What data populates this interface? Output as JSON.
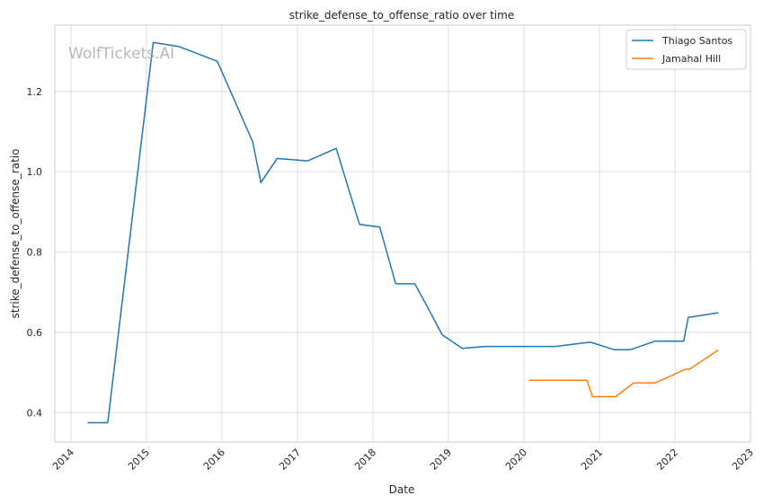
{
  "watermark": "WolfTickets.AI",
  "chart_data": {
    "type": "line",
    "title": "strike_defense_to_offense_ratio over time",
    "xlabel": "Date",
    "ylabel": "strike_defense_to_offense_ratio",
    "xlim": [
      "2013-10-15",
      "2023-01-01"
    ],
    "ylim": [
      0.327,
      1.365
    ],
    "x_ticks": [
      "2014",
      "2015",
      "2016",
      "2017",
      "2018",
      "2019",
      "2020",
      "2021",
      "2022",
      "2023"
    ],
    "y_ticks": [
      "0.4",
      "0.6",
      "0.8",
      "1.0",
      "1.2"
    ],
    "y_tick_values": [
      0.4,
      0.6,
      0.8,
      1.0,
      1.2
    ],
    "grid": true,
    "legend_position": "top-right",
    "series": [
      {
        "name": "Thiago Santos",
        "color": "#1f77b4",
        "points": [
          [
            "2014-03-23",
            0.375
          ],
          [
            "2014-06-28",
            0.375
          ],
          [
            "2015-02-03",
            1.322
          ],
          [
            "2015-06-06",
            1.312
          ],
          [
            "2015-12-10",
            1.275
          ],
          [
            "2016-05-29",
            1.075
          ],
          [
            "2016-07-08",
            0.973
          ],
          [
            "2016-09-24",
            1.033
          ],
          [
            "2017-02-19",
            1.027
          ],
          [
            "2017-07-07",
            1.058
          ],
          [
            "2017-10-28",
            0.869
          ],
          [
            "2018-02-03",
            0.862
          ],
          [
            "2018-04-21",
            0.721
          ],
          [
            "2018-07-22",
            0.721
          ],
          [
            "2018-09-22",
            0.663
          ],
          [
            "2018-12-02",
            0.594
          ],
          [
            "2019-03-09",
            0.56
          ],
          [
            "2019-06-29",
            0.565
          ],
          [
            "2020-06-01",
            0.565
          ],
          [
            "2020-11-07",
            0.575
          ],
          [
            "2020-11-22",
            0.575
          ],
          [
            "2021-03-12",
            0.557
          ],
          [
            "2021-06-01",
            0.557
          ],
          [
            "2021-09-25",
            0.578
          ],
          [
            "2022-02-12",
            0.578
          ],
          [
            "2022-03-06",
            0.637
          ],
          [
            "2022-07-30",
            0.649
          ]
        ]
      },
      {
        "name": "Jamahal Hill",
        "color": "#ff7f0e",
        "points": [
          [
            "2020-01-25",
            0.481
          ],
          [
            "2020-11-01",
            0.481
          ],
          [
            "2020-11-28",
            0.44
          ],
          [
            "2021-03-20",
            0.44
          ],
          [
            "2021-06-15",
            0.474
          ],
          [
            "2021-09-25",
            0.474
          ],
          [
            "2021-12-15",
            0.492
          ],
          [
            "2022-02-19",
            0.508
          ],
          [
            "2022-03-15",
            0.509
          ],
          [
            "2022-07-30",
            0.556
          ]
        ]
      }
    ]
  }
}
